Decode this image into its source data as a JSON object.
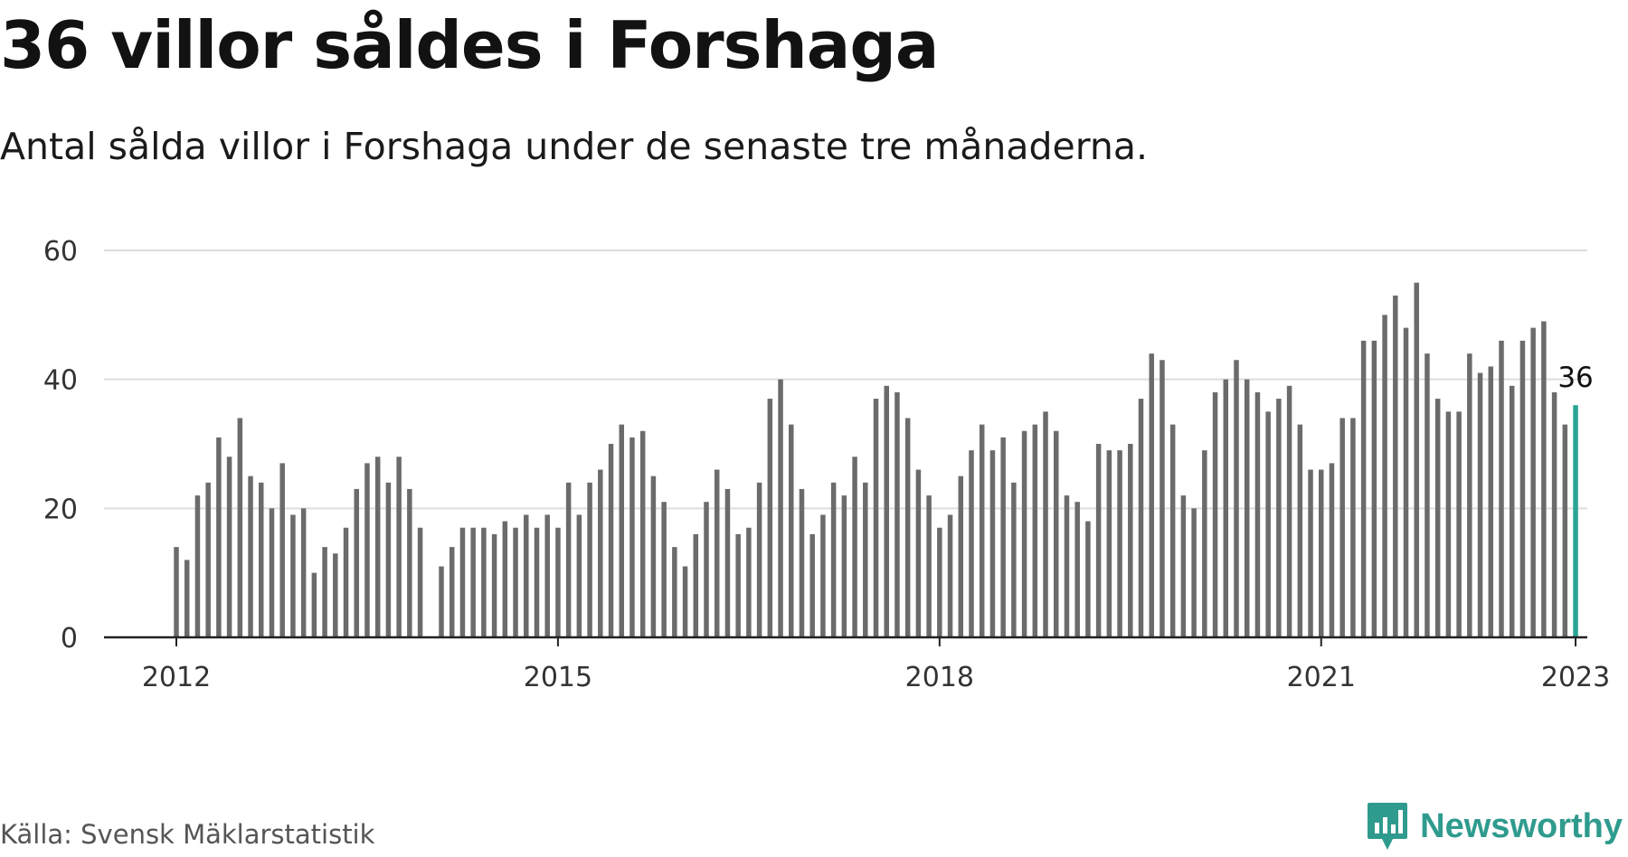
{
  "header": {
    "title": "36 villor såldes i Forshaga",
    "subtitle": "Antal sålda villor i Forshaga under de senaste tre månaderna."
  },
  "footer": {
    "source": "Källa: Svensk Mäklarstatistik",
    "brand": "Newsworthy"
  },
  "colors": {
    "bar": "#6b6b6d",
    "highlight": "#2aa595",
    "grid": "#dddddd",
    "axis": "#222222",
    "brand": "#2f9b8e"
  },
  "chart_data": {
    "type": "bar",
    "title": "36 villor såldes i Forshaga",
    "subtitle": "Antal sålda villor i Forshaga under de senaste tre månaderna.",
    "xlabel": "",
    "ylabel": "",
    "ylim": [
      0,
      60
    ],
    "yticks": [
      0,
      20,
      40,
      60
    ],
    "xticks": [
      "2012",
      "2015",
      "2018",
      "2021",
      "2023"
    ],
    "x_start": "2012-01",
    "x_end": "2023-01",
    "grid": true,
    "legend": "none",
    "highlight_label": "36",
    "values": [
      14,
      12,
      22,
      24,
      31,
      28,
      34,
      25,
      24,
      20,
      27,
      19,
      20,
      10,
      14,
      13,
      17,
      23,
      27,
      28,
      24,
      28,
      23,
      17,
      null,
      11,
      14,
      17,
      17,
      17,
      16,
      18,
      17,
      19,
      17,
      19,
      17,
      24,
      19,
      24,
      26,
      30,
      33,
      31,
      32,
      25,
      21,
      14,
      11,
      16,
      21,
      26,
      23,
      16,
      17,
      24,
      37,
      40,
      33,
      23,
      16,
      19,
      24,
      22,
      28,
      24,
      37,
      39,
      38,
      34,
      26,
      22,
      17,
      19,
      25,
      29,
      33,
      29,
      31,
      24,
      32,
      33,
      35,
      32,
      22,
      21,
      18,
      30,
      29,
      29,
      30,
      37,
      44,
      43,
      33,
      22,
      20,
      29,
      38,
      40,
      43,
      40,
      38,
      35,
      37,
      39,
      33,
      26,
      26,
      27,
      34,
      34,
      46,
      46,
      50,
      53,
      48,
      55,
      44,
      37,
      35,
      35,
      44,
      41,
      42,
      46,
      39,
      46,
      48,
      49,
      38,
      33,
      36
    ]
  }
}
